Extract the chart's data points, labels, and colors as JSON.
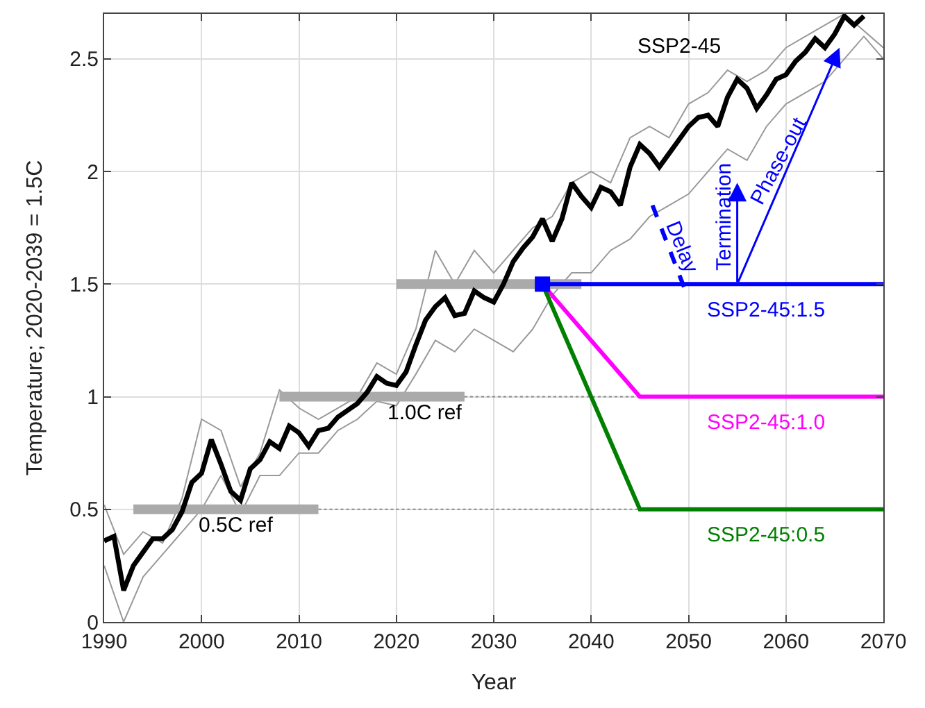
{
  "chart_data": {
    "type": "line",
    "xlabel": "Year",
    "ylabel": "Temperature; 2020-2039 = 1.5C",
    "xlim": [
      1990,
      2070
    ],
    "xticks": [
      1990,
      2000,
      2010,
      2020,
      2030,
      2040,
      2050,
      2060,
      2070
    ],
    "ylim": [
      0,
      2.7
    ],
    "yticks": [
      0,
      0.5,
      1,
      1.5,
      2,
      2.5
    ],
    "grid": true,
    "marker": "none",
    "line_style": "solid",
    "series": [
      {
        "color": "#999999",
        "x": [
          1990,
          1992,
          1994,
          1996,
          1998,
          2000,
          2002,
          2004,
          2006,
          2008,
          2010,
          2012,
          2014,
          2016,
          2018,
          2020,
          2022,
          2024,
          2026,
          2028,
          2030,
          2032,
          2034,
          2036,
          2038,
          2040,
          2042,
          2044,
          2046,
          2048,
          2050,
          2052,
          2054,
          2056,
          2058,
          2060,
          2062,
          2064,
          2066,
          2070
        ],
        "values": [
          0.52,
          0.3,
          0.4,
          0.35,
          0.55,
          0.9,
          0.85,
          0.6,
          0.75,
          1.03,
          0.95,
          0.9,
          0.95,
          1.0,
          1.15,
          1.1,
          1.3,
          1.65,
          1.5,
          1.65,
          1.55,
          1.65,
          1.75,
          1.8,
          1.95,
          2.0,
          1.95,
          2.15,
          2.2,
          2.15,
          2.3,
          2.35,
          2.45,
          2.4,
          2.45,
          2.55,
          2.6,
          2.65,
          2.7,
          2.55
        ]
      },
      {
        "color": "#999999",
        "x": [
          1990,
          1992,
          1994,
          1996,
          1998,
          2000,
          2002,
          2004,
          2006,
          2008,
          2010,
          2012,
          2014,
          2016,
          2018,
          2020,
          2022,
          2024,
          2026,
          2028,
          2030,
          2032,
          2034,
          2036,
          2038,
          2040,
          2042,
          2044,
          2046,
          2048,
          2050,
          2052,
          2054,
          2056,
          2058,
          2060,
          2062,
          2064,
          2066,
          2068,
          2070
        ],
        "values": [
          0.25,
          0.0,
          0.2,
          0.3,
          0.4,
          0.5,
          0.65,
          0.48,
          0.65,
          0.65,
          0.75,
          0.75,
          0.85,
          0.9,
          0.98,
          0.96,
          1.1,
          1.25,
          1.2,
          1.3,
          1.25,
          1.2,
          1.3,
          1.45,
          1.55,
          1.55,
          1.65,
          1.7,
          1.8,
          1.85,
          1.9,
          2.0,
          2.1,
          2.05,
          2.2,
          2.3,
          2.35,
          2.4,
          2.5,
          2.6,
          2.5
        ]
      },
      {
        "color": "#888888",
        "line_style": "dotted",
        "x": [
          2012,
          2045
        ],
        "values": [
          0.5,
          0.5
        ]
      },
      {
        "color": "#888888",
        "line_style": "dotted",
        "x": [
          2027,
          2045
        ],
        "values": [
          1.0,
          1.0
        ]
      },
      {
        "color": "#aaaaaa",
        "x": [
          1993,
          2012
        ],
        "values": [
          0.5,
          0.5
        ]
      },
      {
        "color": "#aaaaaa",
        "x": [
          2008,
          2027
        ],
        "values": [
          1.0,
          1.0
        ]
      },
      {
        "color": "#aaaaaa",
        "x": [
          2020,
          2039
        ],
        "values": [
          1.5,
          1.5
        ]
      },
      {
        "name": "SSP2-45",
        "color": "#000000",
        "x": [
          1990,
          1991,
          1992,
          1993,
          1994,
          1995,
          1996,
          1997,
          1998,
          1999,
          2000,
          2001,
          2002,
          2003,
          2004,
          2005,
          2006,
          2007,
          2008,
          2009,
          2010,
          2011,
          2012,
          2013,
          2014,
          2015,
          2016,
          2017,
          2018,
          2019,
          2020,
          2021,
          2022,
          2023,
          2024,
          2025,
          2026,
          2027,
          2028,
          2029,
          2030,
          2031,
          2032,
          2033,
          2034,
          2035,
          2036,
          2037,
          2038,
          2039,
          2040,
          2041,
          2042,
          2043,
          2044,
          2045,
          2046,
          2047,
          2048,
          2049,
          2050,
          2051,
          2052,
          2053,
          2054,
          2055,
          2056,
          2057,
          2058,
          2059,
          2060,
          2061,
          2062,
          2063,
          2064,
          2065,
          2066,
          2067,
          2068
        ],
        "values": [
          0.36,
          0.38,
          0.14,
          0.25,
          0.31,
          0.37,
          0.37,
          0.41,
          0.49,
          0.62,
          0.66,
          0.81,
          0.7,
          0.58,
          0.54,
          0.68,
          0.72,
          0.8,
          0.77,
          0.87,
          0.84,
          0.78,
          0.85,
          0.86,
          0.91,
          0.94,
          0.97,
          1.02,
          1.09,
          1.06,
          1.05,
          1.11,
          1.23,
          1.34,
          1.4,
          1.44,
          1.36,
          1.37,
          1.47,
          1.44,
          1.42,
          1.5,
          1.6,
          1.66,
          1.71,
          1.79,
          1.69,
          1.79,
          1.95,
          1.89,
          1.84,
          1.93,
          1.91,
          1.85,
          2.02,
          2.12,
          2.08,
          2.02,
          2.08,
          2.14,
          2.2,
          2.24,
          2.25,
          2.2,
          2.33,
          2.41,
          2.37,
          2.28,
          2.34,
          2.41,
          2.43,
          2.49,
          2.53,
          2.59,
          2.55,
          2.61,
          2.69,
          2.65,
          2.69
        ]
      },
      {
        "name": "SSP2-45:1.5",
        "color": "#0000ff",
        "x": [
          2035,
          2070
        ],
        "values": [
          1.5,
          1.5
        ]
      },
      {
        "name": "SSP2-45:1.0",
        "color": "#ff00ff",
        "x": [
          2035,
          2045,
          2070
        ],
        "values": [
          1.5,
          1.0,
          1.0
        ]
      },
      {
        "name": "SSP2-45:0.5",
        "color": "#008000",
        "x": [
          2035,
          2045,
          2070
        ],
        "values": [
          1.5,
          0.5,
          0.5
        ]
      },
      {
        "color": "#0000ff",
        "marker": "square",
        "type": "scatter",
        "x": [
          2035
        ],
        "values": [
          1.5
        ]
      },
      {
        "color": "#0000ff",
        "line_style": "dashed",
        "x": [
          2046.3,
          2049.6
        ],
        "values": [
          1.85,
          1.48
        ]
      }
    ],
    "annotations": [
      "0.5C ref",
      "1.0C ref",
      "Delay",
      "Termination",
      "Phase-out"
    ]
  }
}
